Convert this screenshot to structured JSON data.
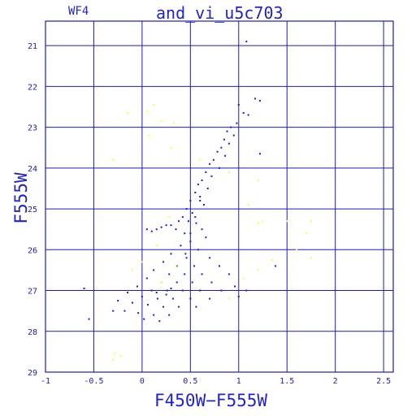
{
  "header": {
    "chip": "WF4"
  },
  "colors": {
    "axis": "#1a1acc",
    "point": "#1a1ae6",
    "point_alt": "#ffff33"
  },
  "chart_data": {
    "type": "scatter",
    "title": "and_vi_u5c703",
    "xlabel": "F450W−F555W",
    "ylabel": "F555W",
    "xlim": [
      -1,
      2.6
    ],
    "ylim": [
      29,
      20.4
    ],
    "y_inverted": true,
    "grid": true,
    "x_ticks": [
      -1,
      -0.5,
      0,
      0.5,
      1,
      1.5,
      2,
      2.5
    ],
    "x_tick_labels": [
      "-1",
      "-0.5",
      "0",
      "0.5",
      "1",
      "1.5",
      "2",
      "2.5"
    ],
    "y_ticks": [
      21,
      22,
      23,
      24,
      25,
      26,
      27,
      28,
      29
    ],
    "y_tick_labels": [
      "21",
      "22",
      "23",
      "24",
      "25",
      "26",
      "27",
      "28",
      "29"
    ],
    "series": [
      {
        "color": "#1a1ae6",
        "points": [
          [
            1.08,
            20.9
          ],
          [
            1.17,
            22.3
          ],
          [
            1.22,
            22.35
          ],
          [
            1.0,
            22.45
          ],
          [
            1.05,
            22.65
          ],
          [
            1.1,
            22.7
          ],
          [
            0.98,
            22.9
          ],
          [
            0.92,
            23.0
          ],
          [
            0.88,
            23.1
          ],
          [
            0.95,
            23.2
          ],
          [
            0.85,
            23.3
          ],
          [
            0.9,
            23.4
          ],
          [
            1.22,
            23.65
          ],
          [
            0.82,
            23.5
          ],
          [
            0.78,
            23.6
          ],
          [
            0.86,
            23.7
          ],
          [
            0.74,
            23.8
          ],
          [
            0.7,
            23.9
          ],
          [
            0.8,
            24.0
          ],
          [
            0.66,
            24.1
          ],
          [
            0.72,
            24.2
          ],
          [
            0.62,
            24.3
          ],
          [
            0.58,
            24.4
          ],
          [
            0.68,
            24.5
          ],
          [
            0.55,
            24.6
          ],
          [
            0.6,
            24.7
          ],
          [
            0.5,
            24.8
          ],
          [
            0.64,
            24.9
          ],
          [
            0.46,
            25.0
          ],
          [
            0.52,
            25.1
          ],
          [
            0.42,
            25.2
          ],
          [
            0.48,
            25.3
          ],
          [
            0.38,
            25.3
          ],
          [
            0.56,
            25.35
          ],
          [
            0.3,
            25.4
          ],
          [
            0.25,
            25.4
          ],
          [
            0.2,
            25.45
          ],
          [
            0.15,
            25.5
          ],
          [
            0.1,
            25.55
          ],
          [
            0.05,
            25.5
          ],
          [
            0.35,
            25.5
          ],
          [
            0.62,
            25.5
          ],
          [
            0.44,
            25.6
          ],
          [
            0.66,
            25.7
          ],
          [
            0.5,
            25.8
          ],
          [
            0.4,
            25.9
          ],
          [
            0.58,
            26.0
          ],
          [
            0.3,
            26.1
          ],
          [
            0.46,
            26.2
          ],
          [
            0.7,
            26.2
          ],
          [
            0.22,
            26.3
          ],
          [
            0.36,
            26.4
          ],
          [
            0.54,
            26.4
          ],
          [
            0.8,
            26.4
          ],
          [
            0.12,
            26.5
          ],
          [
            0.28,
            26.6
          ],
          [
            0.44,
            26.6
          ],
          [
            0.62,
            26.6
          ],
          [
            0.9,
            26.6
          ],
          [
            1.38,
            26.4
          ],
          [
            0.05,
            26.7
          ],
          [
            0.2,
            26.8
          ],
          [
            0.36,
            26.8
          ],
          [
            0.52,
            26.8
          ],
          [
            0.72,
            26.8
          ],
          [
            -0.05,
            26.9
          ],
          [
            0.1,
            27.0
          ],
          [
            0.26,
            27.0
          ],
          [
            0.42,
            27.0
          ],
          [
            0.6,
            27.0
          ],
          [
            0.82,
            27.0
          ],
          [
            -0.15,
            27.05
          ],
          [
            0.0,
            27.15
          ],
          [
            0.16,
            27.2
          ],
          [
            0.32,
            27.2
          ],
          [
            0.5,
            27.2
          ],
          [
            0.7,
            27.2
          ],
          [
            -0.25,
            27.25
          ],
          [
            -0.1,
            27.3
          ],
          [
            0.06,
            27.35
          ],
          [
            0.22,
            27.4
          ],
          [
            0.38,
            27.4
          ],
          [
            0.56,
            27.4
          ],
          [
            -0.3,
            27.5
          ],
          [
            -0.18,
            27.5
          ],
          [
            -0.04,
            27.55
          ],
          [
            0.12,
            27.6
          ],
          [
            0.28,
            27.6
          ],
          [
            -0.6,
            26.95
          ],
          [
            -0.55,
            27.7
          ],
          [
            0.02,
            27.7
          ],
          [
            0.18,
            27.75
          ],
          [
            1.0,
            27.15
          ],
          [
            1.08,
            27.0
          ],
          [
            0.96,
            26.9
          ],
          [
            0.25,
            27.1
          ],
          [
            0.3,
            26.95
          ],
          [
            0.15,
            27.05
          ],
          [
            0.45,
            26.1
          ],
          [
            0.5,
            25.6
          ],
          [
            0.55,
            25.2
          ],
          [
            0.6,
            24.8
          ]
        ]
      },
      {
        "color": "#ffff33",
        "points": [
          [
            -0.15,
            22.65
          ],
          [
            0.05,
            22.6
          ],
          [
            0.12,
            22.45
          ],
          [
            0.2,
            22.85
          ],
          [
            0.33,
            22.9
          ],
          [
            0.07,
            23.2
          ],
          [
            -0.3,
            23.8
          ],
          [
            0.3,
            23.5
          ],
          [
            0.6,
            23.8
          ],
          [
            0.9,
            24.1
          ],
          [
            1.2,
            24.3
          ],
          [
            1.1,
            24.9
          ],
          [
            1.2,
            25.35
          ],
          [
            1.25,
            25.3
          ],
          [
            1.5,
            25.3
          ],
          [
            1.75,
            25.3
          ],
          [
            1.7,
            25.6
          ],
          [
            1.75,
            26.2
          ],
          [
            1.6,
            26.0
          ],
          [
            1.35,
            26.25
          ],
          [
            1.2,
            26.5
          ],
          [
            1.05,
            26.7
          ],
          [
            0.9,
            27.2
          ],
          [
            -0.3,
            28.7
          ],
          [
            -0.22,
            28.6
          ],
          [
            -0.28,
            28.55
          ],
          [
            0.2,
            26.8
          ],
          [
            0.35,
            26.4
          ],
          [
            0.0,
            26.3
          ],
          [
            -0.1,
            26.5
          ],
          [
            0.15,
            25.9
          ],
          [
            0.28,
            25.2
          ]
        ]
      }
    ]
  }
}
